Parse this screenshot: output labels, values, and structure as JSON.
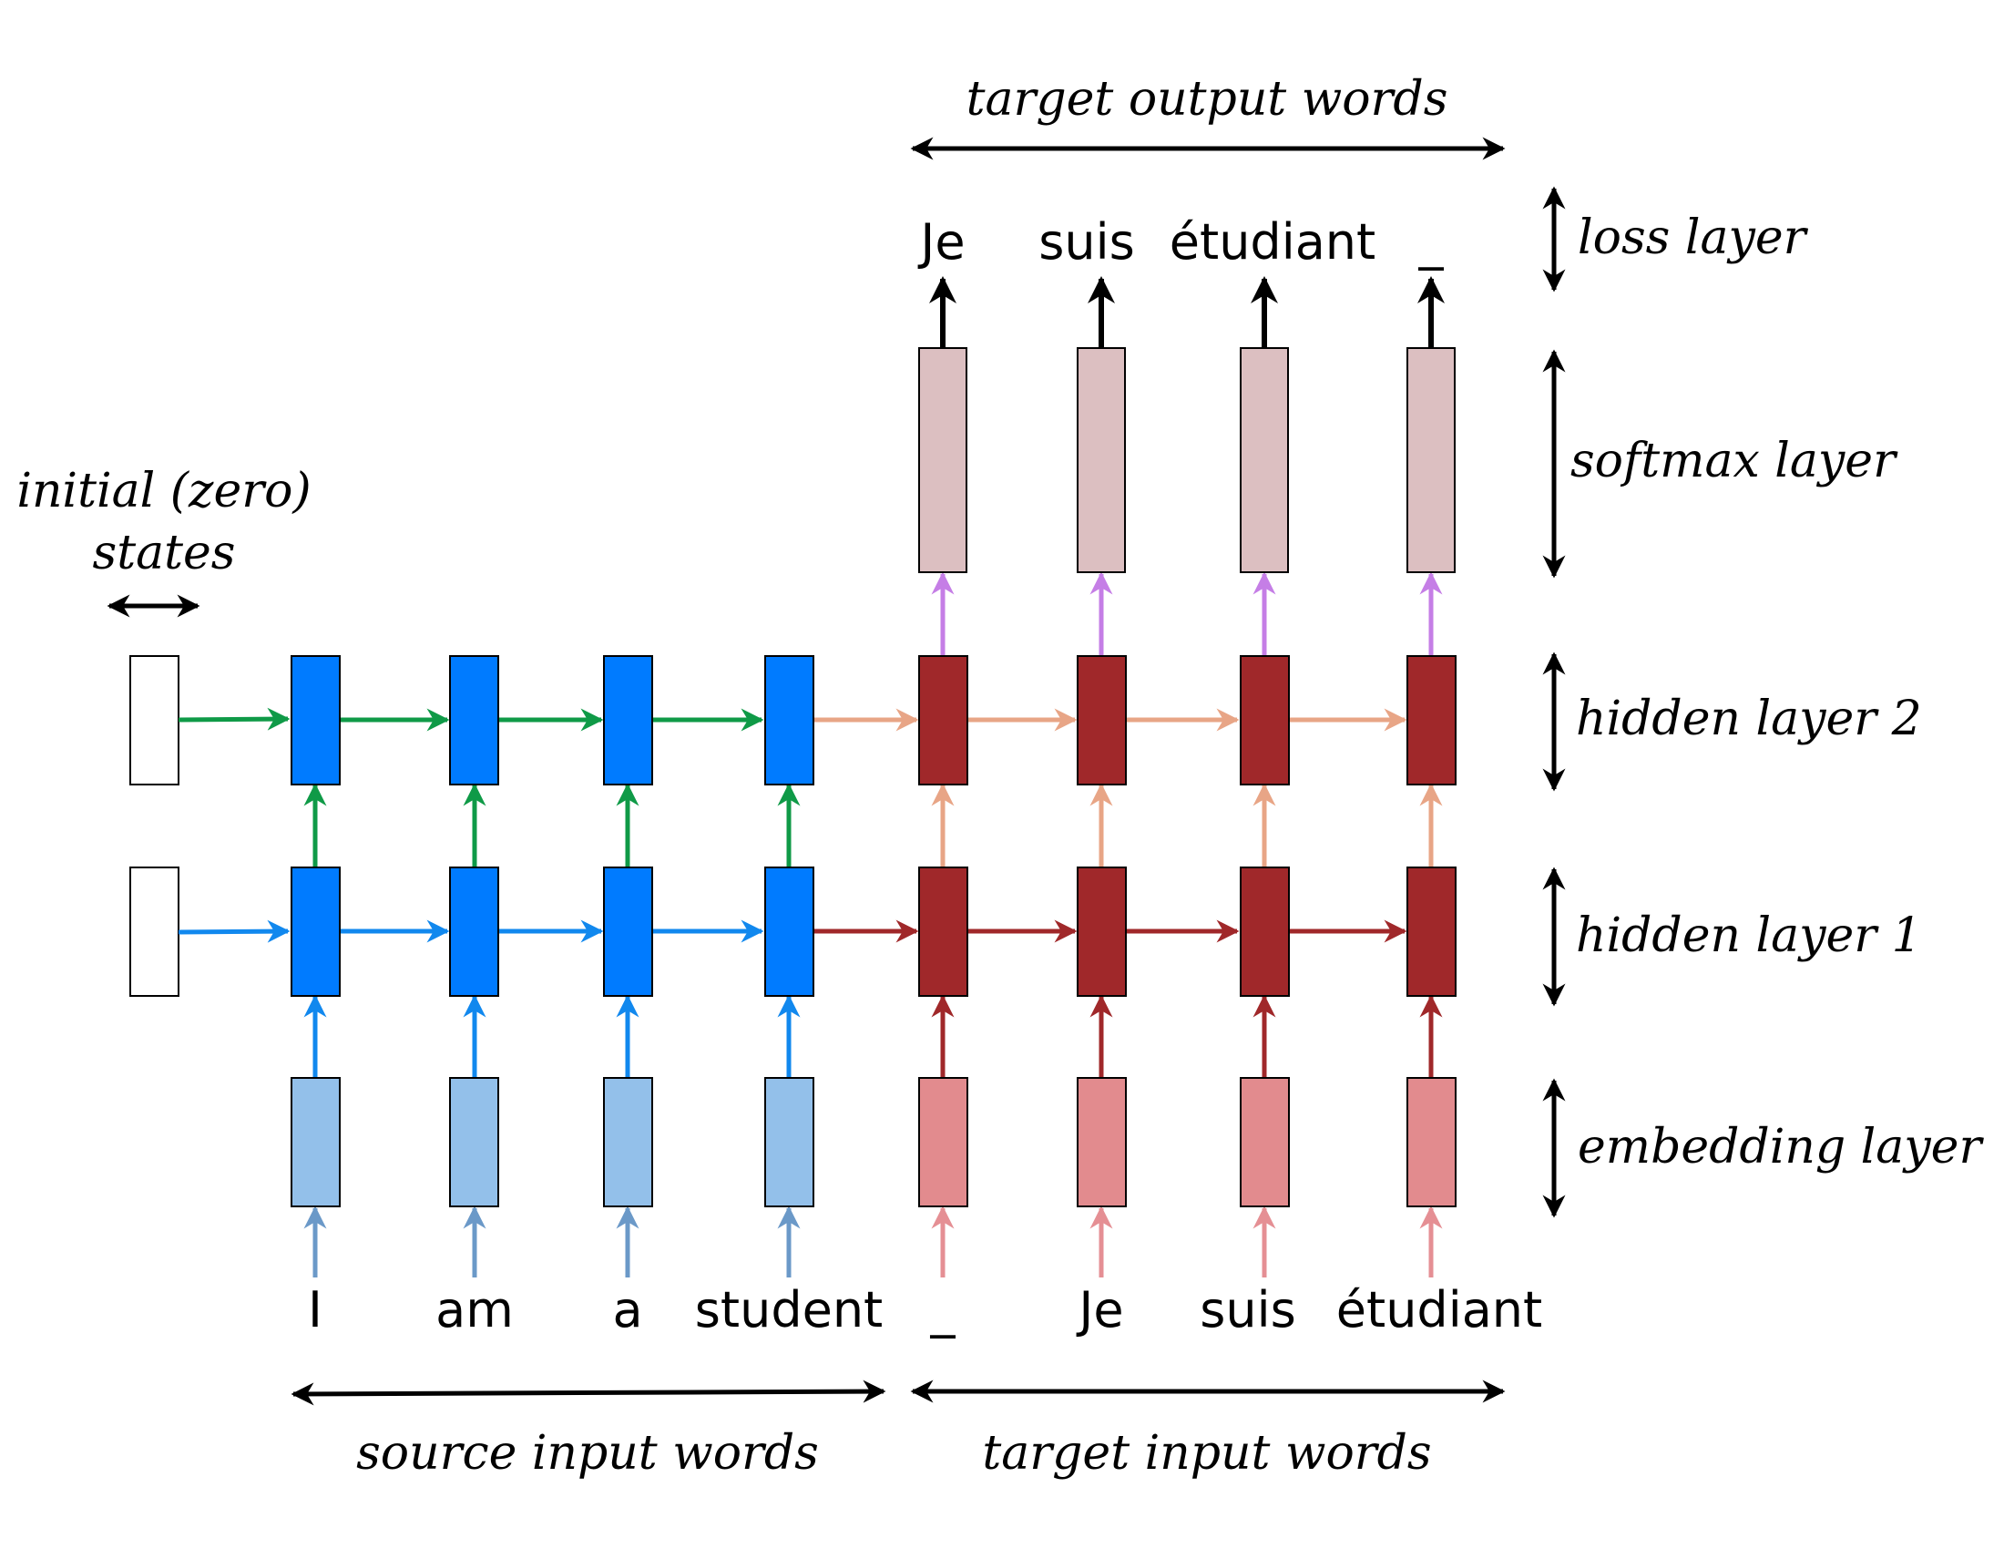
{
  "labels": {
    "target_output_words": "target output words",
    "initial_states_line1": "initial (zero)",
    "initial_states_line2": "states",
    "source_input_words": "source input words",
    "target_input_words": "target input words"
  },
  "layers": [
    {
      "id": "loss",
      "label": "loss layer"
    },
    {
      "id": "softmax",
      "label": "softmax layer"
    },
    {
      "id": "hidden2",
      "label": "hidden layer 2"
    },
    {
      "id": "hidden1",
      "label": "hidden layer 1"
    },
    {
      "id": "embedding",
      "label": "embedding layer"
    }
  ],
  "source_words": [
    "I",
    "am",
    "a",
    "student"
  ],
  "target_input_words": [
    "_",
    "Je",
    "suis",
    "étudiant"
  ],
  "target_output_words": [
    "Je",
    "suis",
    "étudiant",
    "_"
  ],
  "colors": {
    "encoder_hidden": "#007bff",
    "encoder_embedding": "#93c0ea",
    "decoder_hidden": "#a0282a",
    "decoder_embedding": "#e28b8e",
    "softmax": "#dcbfc1",
    "zero_state": "#ffffff",
    "enc_h1_arrow": "#1188ee",
    "enc_h2_arrow": "#0f9a47",
    "dec_h1_arrow": "#a0282a",
    "dec_h2_arrow": "#e8a586",
    "input_arrow_src": "#6b99c8",
    "input_arrow_tgt": "#e58f94",
    "softmax_arrow": "#c57ee6",
    "black": "#000000"
  }
}
